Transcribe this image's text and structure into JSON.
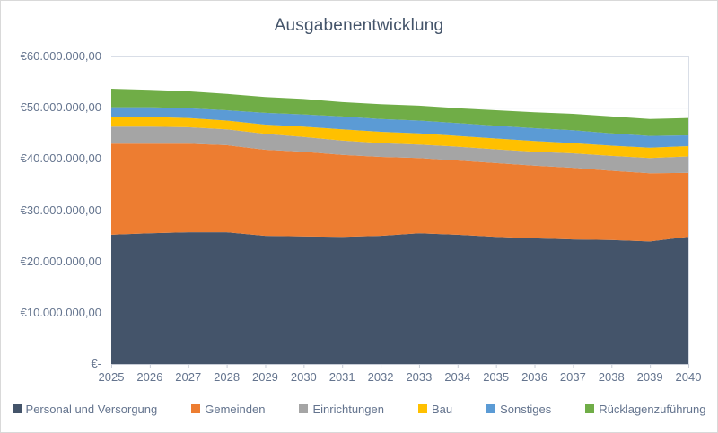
{
  "chart_data": {
    "type": "area",
    "stacked": true,
    "title": "Ausgabenentwicklung",
    "categories": [
      "2025",
      "2026",
      "2027",
      "2028",
      "2029",
      "2030",
      "2031",
      "2032",
      "2033",
      "2034",
      "2035",
      "2036",
      "2037",
      "2038",
      "2039",
      "2040"
    ],
    "values_unit": "million EUR",
    "series": [
      {
        "name": "Personal und Versorgung",
        "color": "#44546A",
        "values": [
          25.2,
          25.5,
          25.7,
          25.7,
          25.0,
          24.9,
          24.8,
          25.0,
          25.5,
          25.2,
          24.8,
          24.5,
          24.3,
          24.2,
          23.9,
          24.8
        ]
      },
      {
        "name": "Gemeinden",
        "color": "#ED7D31",
        "values": [
          17.8,
          17.5,
          17.3,
          17.0,
          16.8,
          16.5,
          16.0,
          15.4,
          14.7,
          14.5,
          14.4,
          14.2,
          14.0,
          13.5,
          13.3,
          12.5
        ]
      },
      {
        "name": "Einrichtungen",
        "color": "#A5A5A5",
        "values": [
          3.3,
          3.3,
          3.2,
          3.1,
          3.1,
          2.9,
          2.8,
          2.7,
          2.6,
          2.7,
          2.7,
          2.7,
          2.8,
          2.9,
          3.0,
          3.2
        ]
      },
      {
        "name": "Bau",
        "color": "#FFC000",
        "values": [
          1.9,
          1.9,
          1.8,
          1.7,
          1.8,
          2.0,
          2.2,
          2.2,
          2.2,
          2.1,
          2.1,
          2.1,
          2.0,
          2.0,
          2.0,
          2.0
        ]
      },
      {
        "name": "Sonstiges",
        "color": "#5B9BD5",
        "values": [
          1.9,
          1.9,
          1.9,
          2.0,
          2.3,
          2.4,
          2.5,
          2.5,
          2.5,
          2.5,
          2.5,
          2.5,
          2.5,
          2.4,
          2.3,
          2.1
        ]
      },
      {
        "name": "Rücklagenzuführung",
        "color": "#70AD47",
        "values": [
          3.6,
          3.4,
          3.3,
          3.2,
          3.1,
          3.0,
          2.8,
          2.9,
          2.9,
          2.9,
          3.0,
          3.1,
          3.2,
          3.3,
          3.3,
          3.4
        ]
      }
    ],
    "y_axis": {
      "min": 0,
      "max": 60000000,
      "tick_interval": 10000000,
      "tick_labels": [
        "€60.000.000,00",
        "€50.000.000,00",
        "€40.000.000,00",
        "€30.000.000,00",
        "€20.000.000,00",
        "€10.000.000,00",
        "€-"
      ]
    },
    "legend_position": "bottom",
    "grid": true,
    "colors": {
      "gridline": "#D9DEE7",
      "axis": "#C7CCD6",
      "label_text": "#64748E",
      "title_text": "#44546A"
    }
  }
}
